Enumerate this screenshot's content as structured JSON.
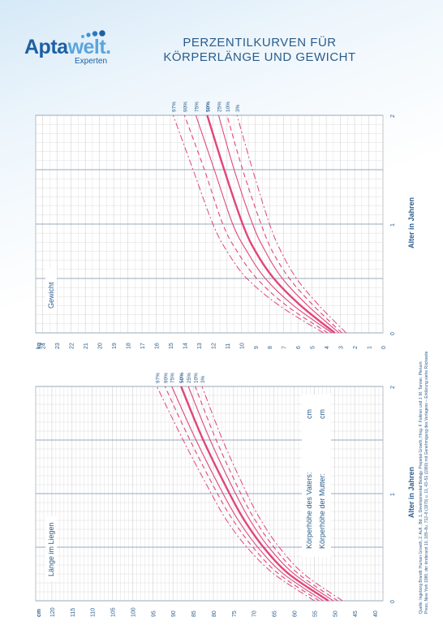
{
  "header": {
    "brand_part1": "Apta",
    "brand_part2": "welt.",
    "brand_sub": "Experten",
    "title_line1": "PERZENTILKURVEN FÜR",
    "title_line2": "KÖRPERLÄNGE UND GEWICHT"
  },
  "colors": {
    "curve": "#e0457b",
    "grid": "#cfcfcf",
    "text": "#2a5d8c"
  },
  "footer": {
    "line1": "Quelle: Ingeborg Brandt: Human Growth, 2. Aufl., Bd. 1, Developmental Biology, Prepetal Growth, Hrsg. F. Falkner und J. M. Tanner, Plenum",
    "line2": "Press, New York 1986; der kinderarzt 10, 185–8u. 712–8 (1979) u. 11, 43–51 (1980) mit Genehmigung des Verlagesv – Erklärung siehe Rückseite"
  },
  "chart_data": [
    {
      "type": "line",
      "name": "weight",
      "label": "Gewicht",
      "y_unit": "kg",
      "xlabel": "Alter in Jahren",
      "x_ticks": [
        "0",
        "1",
        "2"
      ],
      "y_ticks": [
        "0",
        "1",
        "2",
        "3",
        "4",
        "5",
        "6",
        "7",
        "8",
        "9",
        "10",
        "11",
        "12",
        "13",
        "14",
        "15",
        "16",
        "17",
        "18",
        "19",
        "20",
        "21",
        "22",
        "23",
        "24"
      ],
      "xlim": [
        0,
        2
      ],
      "ylim": [
        0,
        24.5
      ],
      "x": [
        0,
        0.25,
        0.5,
        0.75,
        1,
        1.5,
        2
      ],
      "series": [
        {
          "name": "97%",
          "style": "dashdot",
          "values": [
            4.2,
            7.3,
            9.6,
            11.0,
            12.0,
            13.4,
            14.8
          ]
        },
        {
          "name": "90%",
          "style": "dashed",
          "values": [
            3.9,
            6.8,
            8.9,
            10.3,
            11.3,
            12.6,
            14.0
          ]
        },
        {
          "name": "75%",
          "style": "solid",
          "values": [
            3.6,
            6.3,
            8.3,
            9.6,
            10.6,
            11.9,
            13.2
          ]
        },
        {
          "name": "50%",
          "style": "bold",
          "values": [
            3.4,
            5.8,
            7.7,
            9.0,
            9.9,
            11.2,
            12.4
          ]
        },
        {
          "name": "25%",
          "style": "solid",
          "values": [
            3.1,
            5.3,
            7.1,
            8.3,
            9.2,
            10.5,
            11.6
          ]
        },
        {
          "name": "10%",
          "style": "dashed",
          "values": [
            2.9,
            4.9,
            6.6,
            7.8,
            8.6,
            9.9,
            11.0
          ]
        },
        {
          "name": "3%",
          "style": "dashdot",
          "values": [
            2.6,
            4.5,
            6.1,
            7.2,
            8.0,
            9.2,
            10.3
          ]
        }
      ]
    },
    {
      "type": "line",
      "name": "length",
      "label": "Länge im Liegen",
      "y_unit": "cm",
      "xlabel": "Alter in Jahren",
      "x_ticks": [
        "0",
        "1",
        "2"
      ],
      "y_ticks": [
        "40",
        "45",
        "50",
        "55",
        "60",
        "65",
        "70",
        "75",
        "80",
        "85",
        "90",
        "95",
        "100",
        "105",
        "110",
        "115",
        "120"
      ],
      "xlim": [
        0,
        2
      ],
      "ylim": [
        38,
        124
      ],
      "x": [
        0,
        0.25,
        0.5,
        0.75,
        1,
        1.5,
        2
      ],
      "series": [
        {
          "name": "97%",
          "style": "dashdot",
          "values": [
            55.0,
            65.0,
            71.7,
            76.7,
            80.5,
            87.5,
            94.0
          ]
        },
        {
          "name": "90%",
          "style": "dashed",
          "values": [
            53.8,
            63.8,
            70.2,
            75.1,
            79.0,
            85.8,
            92.0
          ]
        },
        {
          "name": "75%",
          "style": "solid",
          "values": [
            52.8,
            62.6,
            69.0,
            73.8,
            77.6,
            84.3,
            90.3
          ]
        },
        {
          "name": "50%",
          "style": "bold",
          "values": [
            51.5,
            61.3,
            67.6,
            72.3,
            76.0,
            82.5,
            88.0
          ]
        },
        {
          "name": "25%",
          "style": "solid",
          "values": [
            50.3,
            60.0,
            66.3,
            70.9,
            74.5,
            80.8,
            86.2
          ]
        },
        {
          "name": "10%",
          "style": "dashed",
          "values": [
            49.2,
            58.9,
            65.0,
            69.6,
            73.2,
            79.3,
            84.5
          ]
        },
        {
          "name": "3%",
          "style": "dashdot",
          "values": [
            48.0,
            57.6,
            63.7,
            68.2,
            71.7,
            77.7,
            82.8
          ]
        }
      ],
      "notes": [
        {
          "label": "Körperhöhe des Vaters:",
          "unit": "cm"
        },
        {
          "label": "Körperhöhe der Mutter:",
          "unit": "cm"
        }
      ]
    }
  ]
}
